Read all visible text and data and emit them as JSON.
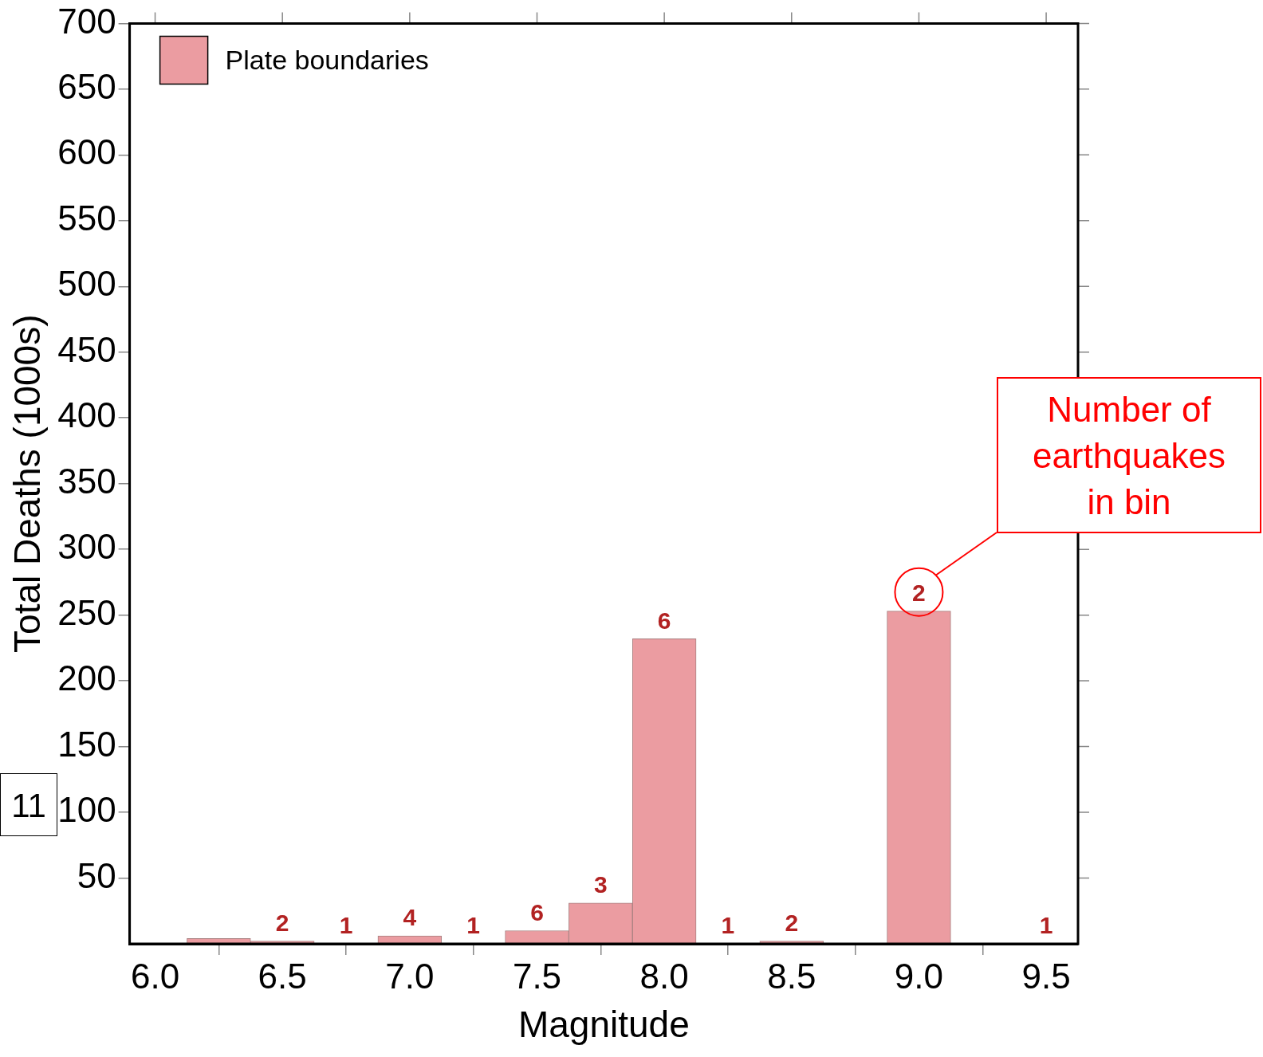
{
  "chart_data": {
    "type": "histogram",
    "xlabel": "Magnitude",
    "ylabel": "Total Deaths (1000s)",
    "bins": [
      6.125,
      6.375,
      6.625,
      6.875,
      7.125,
      7.375,
      7.625,
      7.875,
      8.125,
      8.375,
      8.625,
      8.875,
      9.125,
      9.375,
      9.625
    ],
    "series": [
      {
        "name": "Plate boundaries",
        "color": "#eb9ca1",
        "values": [
          4,
          2,
          0,
          6,
          0,
          10,
          31,
          232,
          0,
          2,
          0,
          253,
          0,
          0
        ]
      }
    ],
    "xlim": [
      5.9,
      9.625
    ],
    "xticks": [
      {
        "value": 6.0,
        "label": "6.0"
      },
      {
        "value": 6.5,
        "label": "6.5"
      },
      {
        "value": 7.0,
        "label": "7.0"
      },
      {
        "value": 7.5,
        "label": "7.5"
      },
      {
        "value": 8.0,
        "label": "8.0"
      },
      {
        "value": 8.5,
        "label": "8.5"
      },
      {
        "value": 9.0,
        "label": "9.0"
      },
      {
        "value": 9.5,
        "label": "9.5"
      }
    ],
    "ylim": [
      0,
      700
    ],
    "yticks": [
      50,
      100,
      150,
      200,
      250,
      300,
      350,
      400,
      450,
      500,
      550,
      600,
      650,
      700
    ],
    "legend": "top left",
    "grid": false,
    "annotations": [
      {
        "text": "2",
        "x": 6.5,
        "y": 2
      },
      {
        "text": "1",
        "x": 6.75,
        "y": 0
      },
      {
        "text": "4",
        "x": 7.0,
        "y": 6
      },
      {
        "text": "1",
        "x": 7.25,
        "y": 0
      },
      {
        "text": "6",
        "x": 7.5,
        "y": 10
      },
      {
        "text": "3",
        "x": 7.75,
        "y": 31
      },
      {
        "text": "6",
        "x": 8.0,
        "y": 232
      },
      {
        "text": "1",
        "x": 8.25,
        "y": 0
      },
      {
        "text": "2",
        "x": 8.5,
        "y": 2
      },
      {
        "text": "2",
        "x": 9.0,
        "y": 253
      },
      {
        "text": "1",
        "x": 9.5,
        "y": 0
      },
      "Number of earthquakes in bin",
      "11"
    ]
  }
}
